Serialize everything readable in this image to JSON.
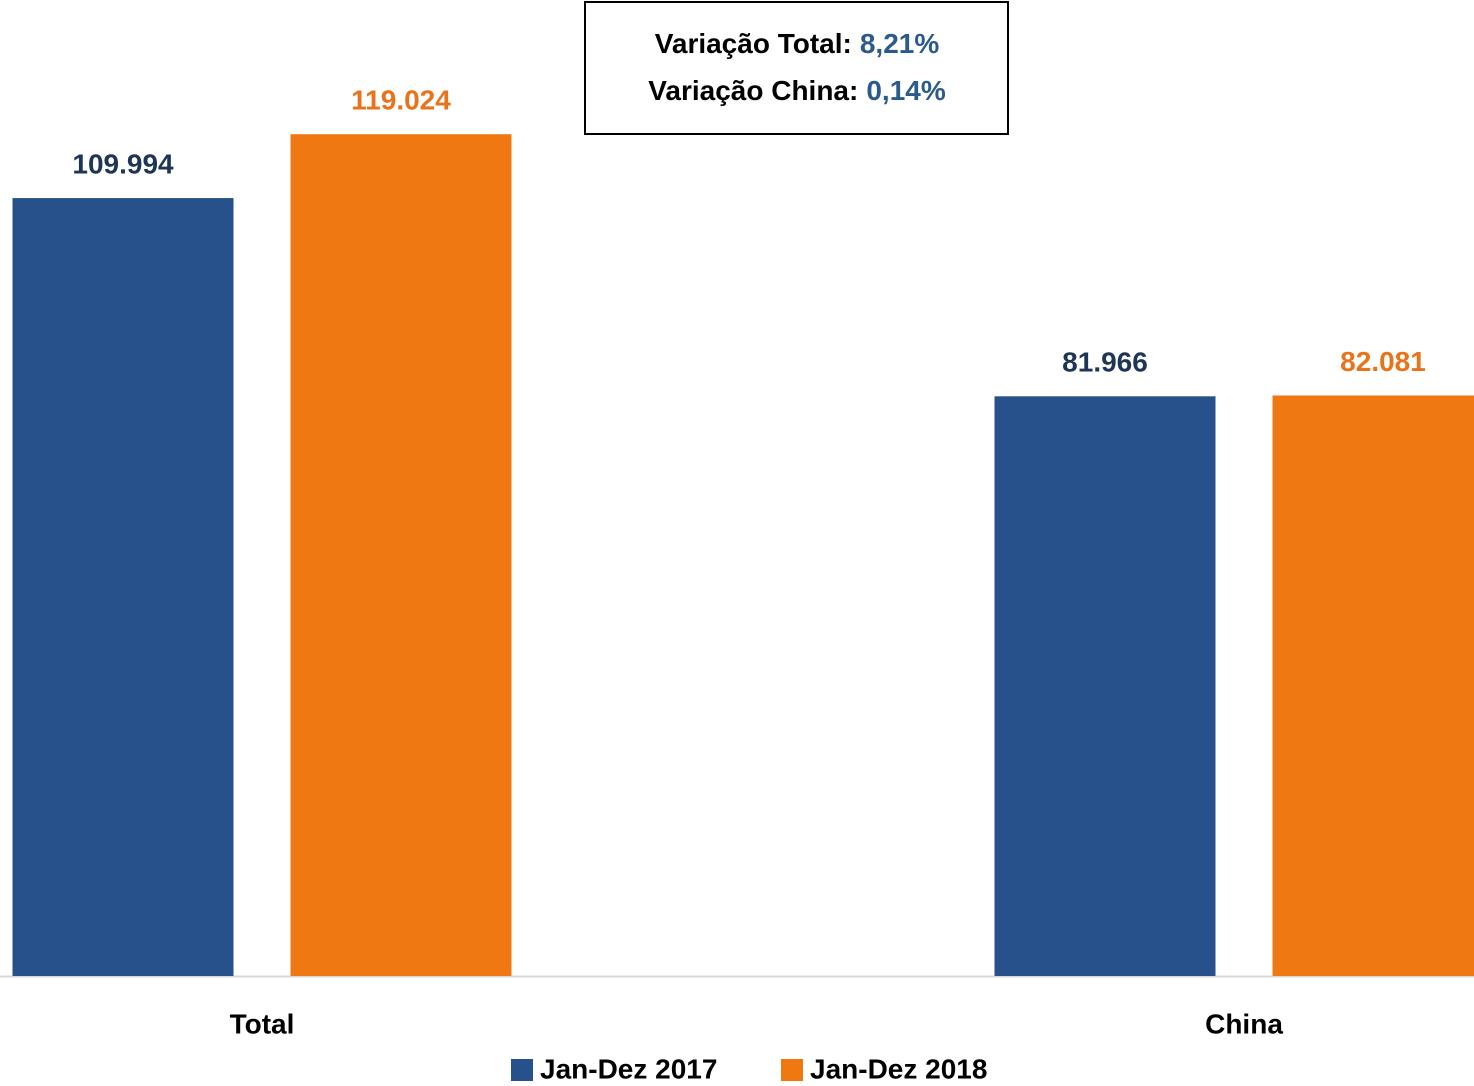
{
  "chart_data": {
    "type": "bar",
    "categories": [
      "Total",
      "China"
    ],
    "series": [
      {
        "name": "Jan-Dez 2017",
        "color": "#27518a",
        "label_color": "#1f3556",
        "values": [
          109994,
          81966
        ],
        "value_labels": [
          "109.994",
          "81.966"
        ]
      },
      {
        "name": "Jan-Dez 2018",
        "color": "#f07812",
        "label_color": "#e9731a",
        "values": [
          119024,
          82081
        ],
        "value_labels": [
          "119.024",
          "82.081"
        ]
      }
    ],
    "ylim": [
      0,
      138000
    ],
    "legend": "bottom",
    "annotations": [
      {
        "text": "Variação Total:",
        "value": "8,21%"
      },
      {
        "text": "Variação China:",
        "value": "0,14%"
      }
    ]
  }
}
